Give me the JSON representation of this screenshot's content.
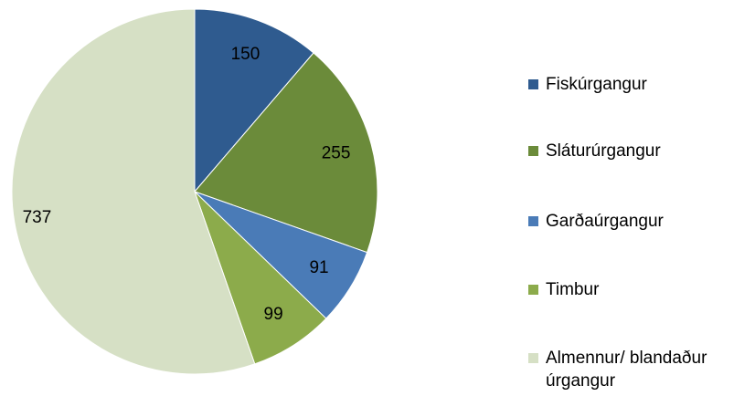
{
  "chart_data": {
    "type": "pie",
    "categories": [
      "Fiskúrgangur",
      "Sláturúrgangur",
      "Garðaúrgangur",
      "Timbur",
      "Almennur/ blandaður úrgangur"
    ],
    "values": [
      150,
      255,
      91,
      99,
      737
    ],
    "colors": [
      "#2f5b8f",
      "#6b8b3a",
      "#4a7bb7",
      "#8cab4b",
      "#d6e0c5"
    ],
    "legend": "right"
  }
}
